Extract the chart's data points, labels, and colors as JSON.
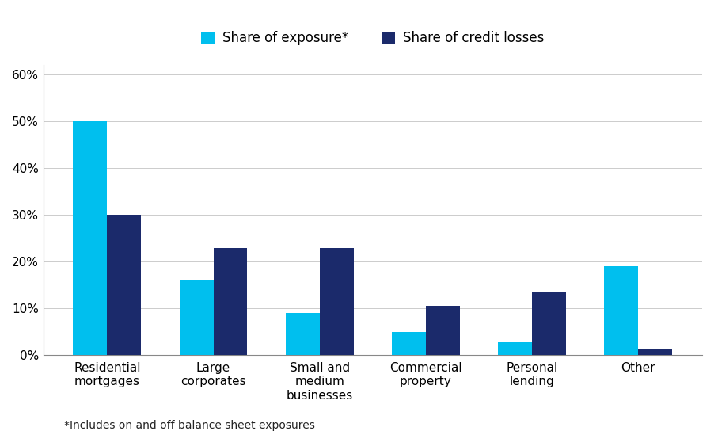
{
  "categories": [
    "Residential\nmortgages",
    "Large\ncorporates",
    "Small and\nmedium\nbusinesses",
    "Commercial\nproperty",
    "Personal\nlending",
    "Other"
  ],
  "exposure": [
    0.5,
    0.16,
    0.09,
    0.05,
    0.03,
    0.19
  ],
  "credit_losses": [
    0.3,
    0.23,
    0.23,
    0.105,
    0.135,
    0.015
  ],
  "exposure_color": "#00BFEE",
  "credit_losses_color": "#1B2A6B",
  "legend_labels": [
    "Share of exposure*",
    "Share of credit losses"
  ],
  "footnote": "*Includes on and off balance sheet exposures",
  "ylim": [
    0,
    0.62
  ],
  "yticks": [
    0.0,
    0.1,
    0.2,
    0.3,
    0.4,
    0.5,
    0.6
  ],
  "bar_width": 0.32,
  "figsize": [
    9.02,
    5.49
  ],
  "dpi": 100,
  "grid_color": "#cccccc",
  "background_color": "#ffffff",
  "tick_fontsize": 11,
  "legend_fontsize": 12,
  "footnote_fontsize": 10
}
